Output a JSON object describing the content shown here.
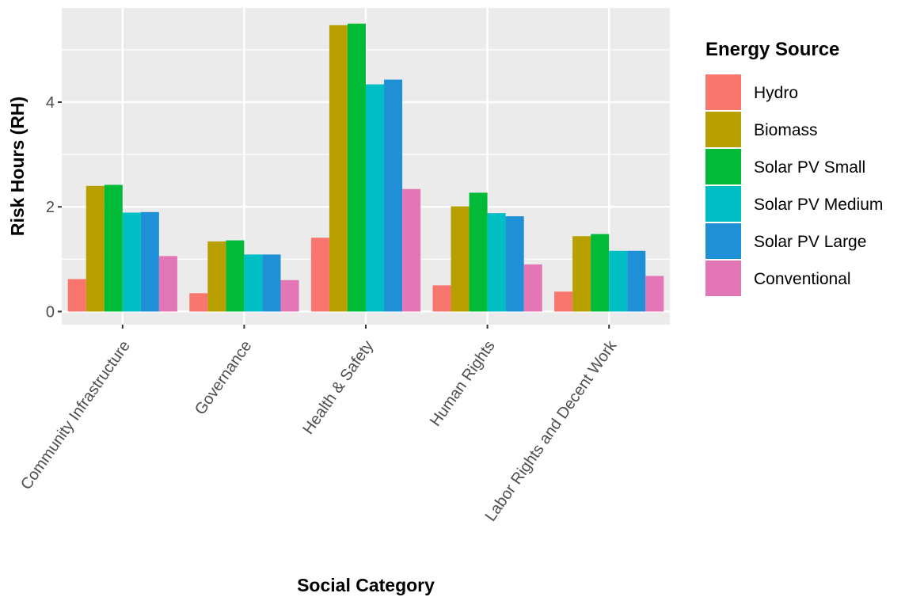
{
  "chart_data": {
    "type": "bar",
    "title": "",
    "xlabel": "Social Category",
    "ylabel": "Risk Hours (RH)",
    "legend_title": "Energy Source",
    "legend_position": "right",
    "grid": true,
    "ylim": [
      -0.25,
      5.8
    ],
    "yticks": [
      0,
      2,
      4
    ],
    "categories": [
      "Community Infrastructure",
      "Governance",
      "Health & Safety",
      "Human Rights",
      "Labor Rights and Decent Work"
    ],
    "series": [
      {
        "name": "Hydro",
        "color": "#F8766D",
        "values": [
          0.62,
          0.35,
          1.41,
          0.5,
          0.38
        ]
      },
      {
        "name": "Biomass",
        "color": "#B79F00",
        "values": [
          2.4,
          1.34,
          5.47,
          2.01,
          1.44
        ]
      },
      {
        "name": "Solar PV Small",
        "color": "#00BA38",
        "values": [
          2.42,
          1.36,
          5.5,
          2.27,
          1.48
        ]
      },
      {
        "name": "Solar PV Medium",
        "color": "#00BFC4",
        "values": [
          1.89,
          1.09,
          4.34,
          1.88,
          1.16
        ]
      },
      {
        "name": "Solar PV Large",
        "color": "#1F8FD6",
        "values": [
          1.9,
          1.09,
          4.43,
          1.82,
          1.16
        ]
      },
      {
        "name": "Conventional",
        "color": "#E377B5",
        "values": [
          1.06,
          0.6,
          2.34,
          0.9,
          0.68
        ]
      }
    ]
  }
}
